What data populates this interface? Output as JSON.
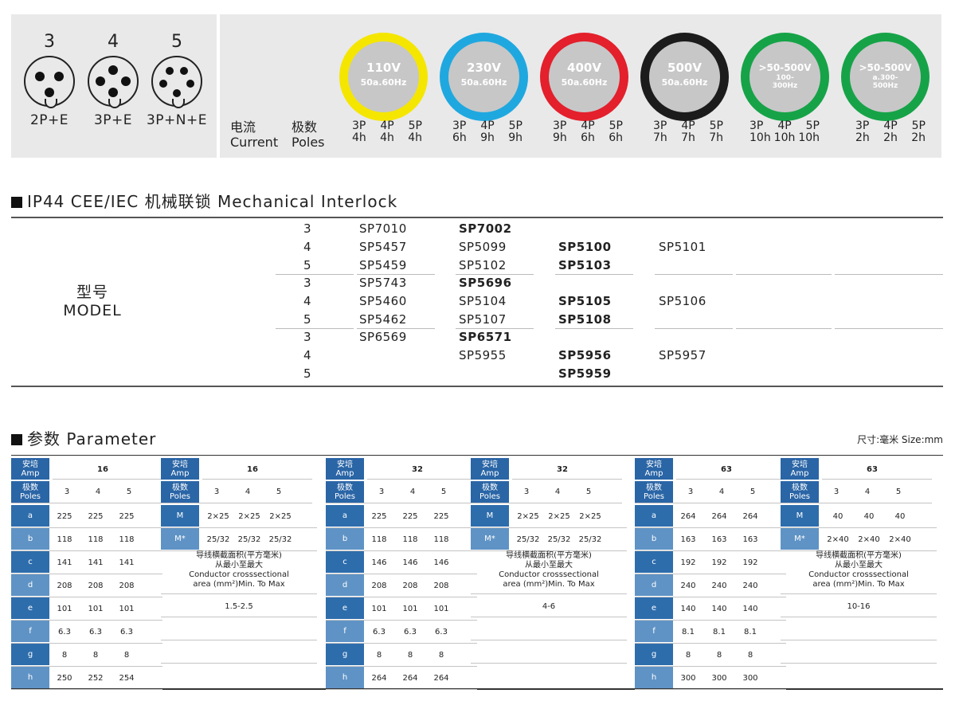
{
  "plugs": [
    {
      "pins": "3",
      "label": "2P+E"
    },
    {
      "pins": "4",
      "label": "3P+E"
    },
    {
      "pins": "5",
      "label": "3P+N+E"
    }
  ],
  "current_poles": {
    "current_cn": "电流",
    "current_en": "Current",
    "poles_cn": "极数",
    "poles_en": "Poles"
  },
  "voltages": [
    {
      "v": "110V",
      "f": "50a.60Hz",
      "ring": "#f5e600",
      "poles": [
        "3P",
        "4P",
        "5P"
      ],
      "hours": [
        "4h",
        "4h",
        "4h"
      ]
    },
    {
      "v": "230V",
      "f": "50a.60Hz",
      "ring": "#1fa8df",
      "poles": [
        "3P",
        "4P",
        "5P"
      ],
      "hours": [
        "6h",
        "9h",
        "9h"
      ]
    },
    {
      "v": "400V",
      "f": "50a.60Hz",
      "ring": "#e3202b",
      "poles": [
        "3P",
        "4P",
        "5P"
      ],
      "hours": [
        "9h",
        "6h",
        "6h"
      ]
    },
    {
      "v": "500V",
      "f": "50a.60Hz",
      "ring": "#1c1c1c",
      "poles": [
        "3P",
        "4P",
        "5P"
      ],
      "hours": [
        "7h",
        "7h",
        "7h"
      ]
    },
    {
      "v": ">50-500V",
      "f": "100-",
      "f2": "300Hz",
      "ring": "#16a347",
      "poles": [
        "3P",
        "4P",
        "5P"
      ],
      "hours": [
        "10h",
        "10h",
        "10h"
      ]
    },
    {
      "v": ">50-500V",
      "f": "a.300-",
      "f2": "500Hz",
      "ring": "#16a347",
      "poles": [
        "3P",
        "4P",
        "5P"
      ],
      "hours": [
        "2h",
        "2h",
        "2h"
      ]
    }
  ],
  "interlock": {
    "title": "IP44 CEE/IEC 机械联锁  Mechanical Interlock",
    "model_cn": "型号",
    "model_en": "MODEL",
    "amps": [
      {
        "amp": "16",
        "color": "#1d5a9a"
      },
      {
        "amp": "32",
        "color": "#2e6dac"
      },
      {
        "amp": "63",
        "color": "#5a8fc2"
      }
    ],
    "rows": [
      {
        "pole": "3",
        "c1": "SP7010",
        "c2": "SP7002",
        "c3": "",
        "c4": ""
      },
      {
        "pole": "4",
        "c1": "SP5457",
        "c2": "SP5099",
        "c3": "SP5100",
        "c4": "SP5101"
      },
      {
        "pole": "5",
        "c1": "SP5459",
        "c2": "SP5102",
        "c3": "SP5103",
        "c4": ""
      },
      {
        "pole": "3",
        "c1": "SP5743",
        "c2": "SP5696",
        "c3": "",
        "c4": ""
      },
      {
        "pole": "4",
        "c1": "SP5460",
        "c2": "SP5104",
        "c3": "SP5105",
        "c4": "SP5106"
      },
      {
        "pole": "5",
        "c1": "SP5462",
        "c2": "SP5107",
        "c3": "SP5108",
        "c4": ""
      },
      {
        "pole": "3",
        "c1": "SP6569",
        "c2": "SP6571",
        "c3": "",
        "c4": ""
      },
      {
        "pole": "4",
        "c1": "",
        "c2": "SP5955",
        "c3": "SP5956",
        "c4": "SP5957"
      },
      {
        "pole": "5",
        "c1": "",
        "c2": "",
        "c3": "SP5959",
        "c4": ""
      }
    ],
    "bold": [
      "SP7002",
      "SP5100",
      "SP5103",
      "SP5696",
      "SP5105",
      "SP5108",
      "SP6571",
      "SP5956",
      "SP5959"
    ]
  },
  "parameter": {
    "title": "参数 Parameter",
    "size_note": "尺寸:毫米  Size:mm",
    "amp_head": [
      "安培",
      "Amp"
    ],
    "pole_head": [
      "极数",
      "Poles"
    ],
    "poles": [
      "3",
      "4",
      "5"
    ],
    "dim_labels": [
      "a",
      "b",
      "c",
      "d",
      "e",
      "f",
      "g",
      "h"
    ],
    "dim_groups": [
      {
        "amp": "16",
        "rows": [
          [
            "225",
            "225",
            "225"
          ],
          [
            "118",
            "118",
            "118"
          ],
          [
            "141",
            "141",
            "141"
          ],
          [
            "208",
            "208",
            "208"
          ],
          [
            "101",
            "101",
            "101"
          ],
          [
            "6.3",
            "6.3",
            "6.3"
          ],
          [
            "8",
            "8",
            "8"
          ],
          [
            "250",
            "252",
            "254"
          ]
        ]
      },
      {
        "amp": "32",
        "rows": [
          [
            "225",
            "225",
            "225"
          ],
          [
            "118",
            "118",
            "118"
          ],
          [
            "146",
            "146",
            "146"
          ],
          [
            "208",
            "208",
            "208"
          ],
          [
            "101",
            "101",
            "101"
          ],
          [
            "6.3",
            "6.3",
            "6.3"
          ],
          [
            "8",
            "8",
            "8"
          ],
          [
            "264",
            "264",
            "264"
          ]
        ]
      },
      {
        "amp": "63",
        "rows": [
          [
            "264",
            "264",
            "264"
          ],
          [
            "163",
            "163",
            "163"
          ],
          [
            "192",
            "192",
            "192"
          ],
          [
            "240",
            "240",
            "240"
          ],
          [
            "140",
            "140",
            "140"
          ],
          [
            "8.1",
            "8.1",
            "8.1"
          ],
          [
            "8",
            "8",
            "8"
          ],
          [
            "300",
            "300",
            "300"
          ]
        ]
      }
    ],
    "m_groups": [
      {
        "amp": "16",
        "m": [
          "2×25",
          "2×25",
          "2×25"
        ],
        "mstar": [
          "25/32",
          "25/32",
          "25/32"
        ],
        "range": "1.5-2.5"
      },
      {
        "amp": "32",
        "m": [
          "2×25",
          "2×25",
          "2×25"
        ],
        "mstar": [
          "25/32",
          "25/32",
          "25/32"
        ],
        "range": "4-6"
      },
      {
        "amp": "63",
        "m": [
          "40",
          "40",
          "40"
        ],
        "mstar": [
          "2×40",
          "2×40",
          "2×40"
        ],
        "range": "10-16"
      }
    ],
    "m_label": "M",
    "mstar_label": "M*",
    "note": [
      "导线横截面积(平方毫米)",
      "从最小至最大",
      "Conductor crosssectional",
      "area (mm²)Min. To Max"
    ]
  }
}
